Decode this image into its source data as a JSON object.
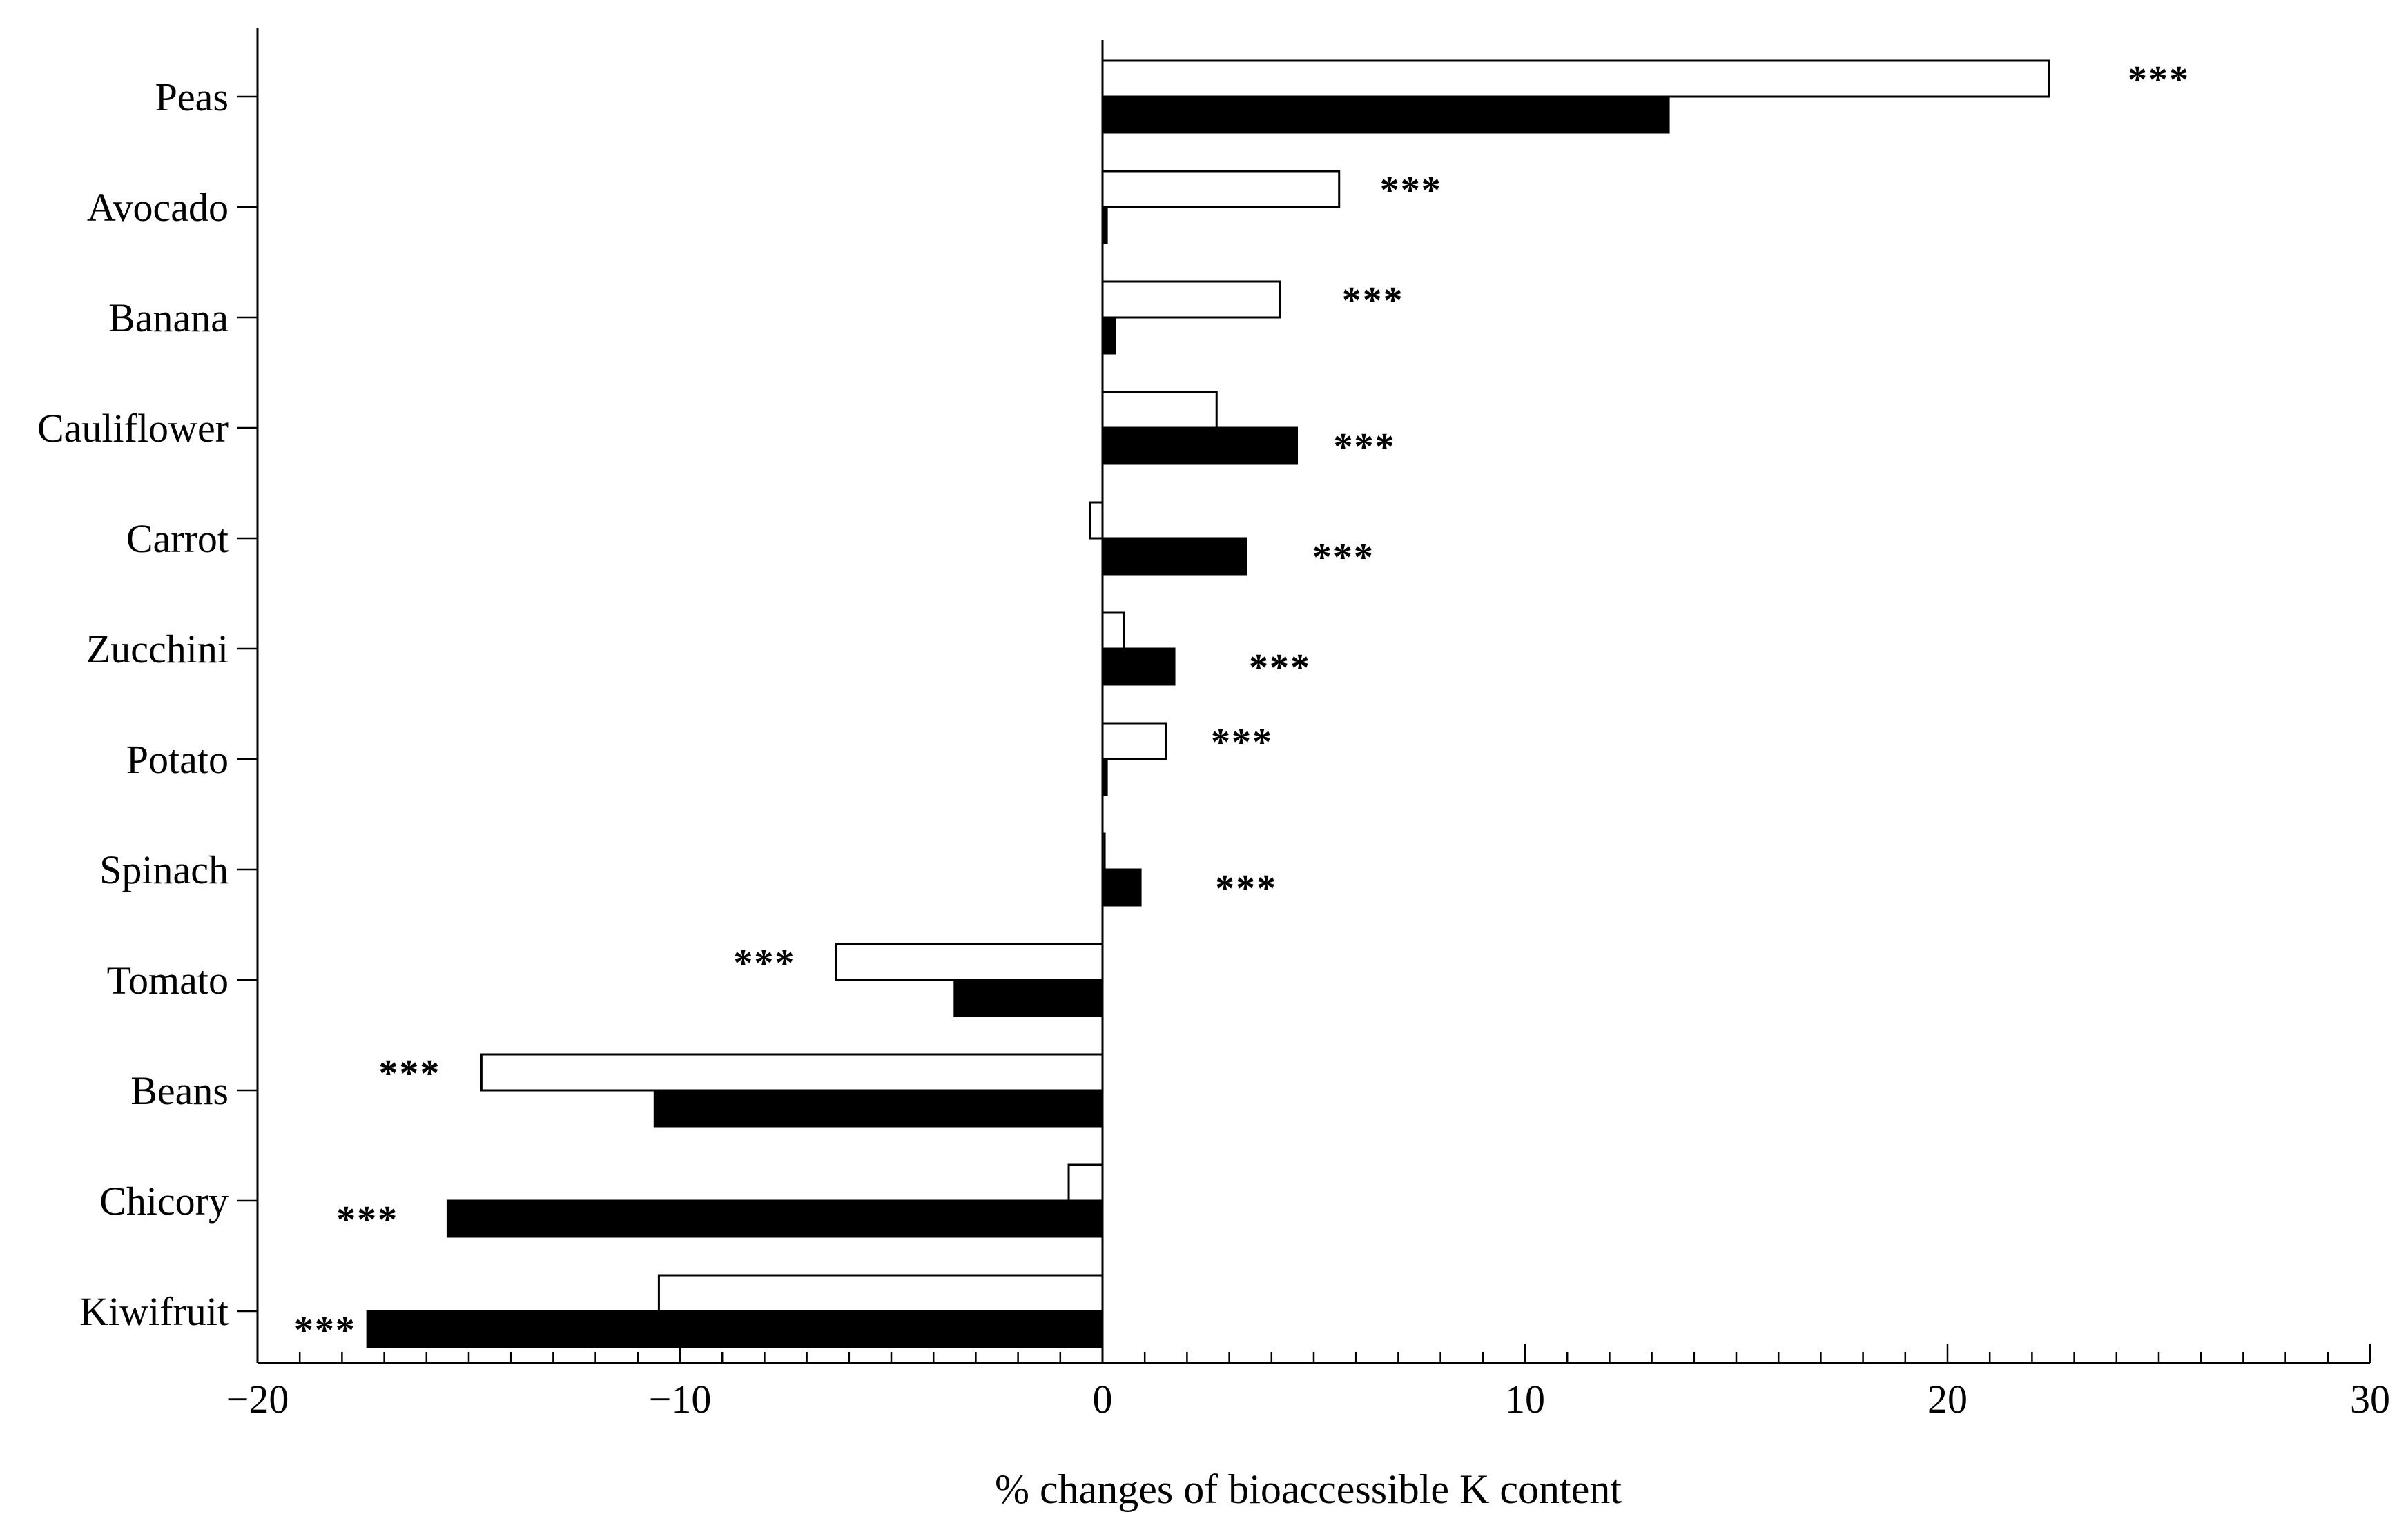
{
  "chart_data": {
    "type": "bar",
    "orientation": "horizontal",
    "categories": [
      "Peas",
      "Avocado",
      "Banana",
      "Cauliflower",
      "Carrot",
      "Zucchini",
      "Potato",
      "Spinach",
      "Tomato",
      "Beans",
      "Chicory",
      "Kiwifruit"
    ],
    "series": [
      {
        "color": "#ffffff",
        "edge": "#000000",
        "values": [
          22.4,
          5.6,
          4.2,
          2.7,
          -0.3,
          0.5,
          1.5,
          0.05,
          -6.3,
          -14.7,
          -0.8,
          -10.5
        ]
      },
      {
        "color": "#000000",
        "edge": "#000000",
        "values": [
          13.4,
          0.1,
          0.3,
          4.6,
          3.4,
          1.7,
          0.1,
          0.9,
          -3.5,
          -10.6,
          -15.5,
          -17.4
        ]
      }
    ],
    "annotations": [
      {
        "category": "Peas",
        "text": "***",
        "x": 25.0,
        "series": 0
      },
      {
        "category": "Avocado",
        "text": "***",
        "x": 7.3,
        "series": 0
      },
      {
        "category": "Banana",
        "text": "***",
        "x": 6.4,
        "series": 0
      },
      {
        "category": "Cauliflower",
        "text": "***",
        "x": 6.2,
        "series": 1
      },
      {
        "category": "Carrot",
        "text": "***",
        "x": 5.7,
        "series": 1
      },
      {
        "category": "Zucchini",
        "text": "***",
        "x": 4.2,
        "series": 1
      },
      {
        "category": "Potato",
        "text": "***",
        "x": 3.3,
        "series": 0
      },
      {
        "category": "Spinach",
        "text": "***",
        "x": 3.4,
        "series": 1
      },
      {
        "category": "Tomato",
        "text": "***",
        "x": -8.0,
        "series": 0
      },
      {
        "category": "Beans",
        "text": "***",
        "x": -16.4,
        "series": 0
      },
      {
        "category": "Chicory",
        "text": "***",
        "x": -17.4,
        "series": 1
      },
      {
        "category": "Kiwifruit",
        "text": "***",
        "x": -18.4,
        "series": 1
      }
    ],
    "xlabel": "% changes of bioaccessible K content",
    "ylabel": "",
    "title": "",
    "xlim": [
      -20,
      30
    ],
    "xticks": [
      -20,
      -10,
      0,
      10,
      20,
      30
    ],
    "xtick_labels": [
      "−20",
      "−10",
      "0",
      "10",
      "20",
      "30"
    ],
    "minor_tick_step": 1,
    "grid": false,
    "legend": "none"
  }
}
